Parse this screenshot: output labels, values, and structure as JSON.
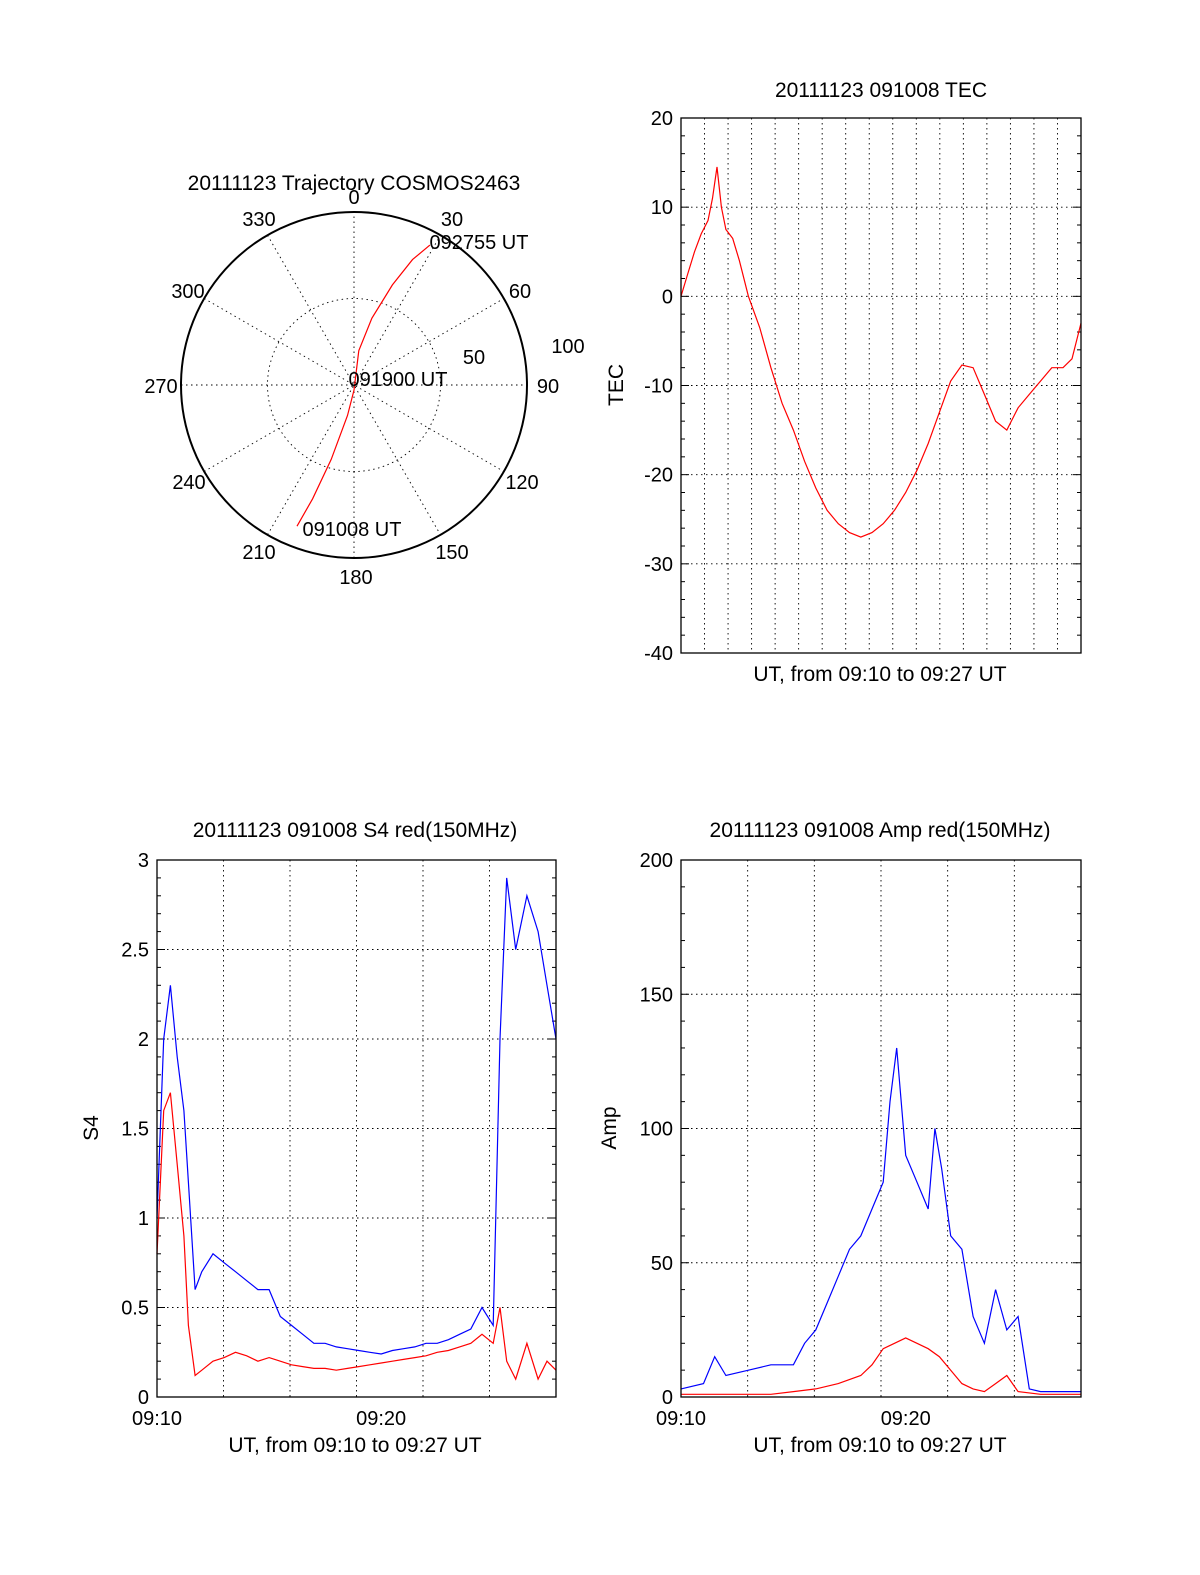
{
  "figure": {
    "charts": [
      {
        "id": "polar",
        "type": "polar",
        "title": "20111123 Trajectory COSMOS2463",
        "angle_labels": [
          {
            "angle": 0,
            "label": "0"
          },
          {
            "angle": 30,
            "label": "30"
          },
          {
            "angle": 60,
            "label": "60"
          },
          {
            "angle": 90,
            "label": "90"
          },
          {
            "angle": 120,
            "label": "120"
          },
          {
            "angle": 150,
            "label": "150"
          },
          {
            "angle": 180,
            "label": "180"
          },
          {
            "angle": 210,
            "label": "210"
          },
          {
            "angle": 240,
            "label": "240"
          },
          {
            "angle": 270,
            "label": "270"
          },
          {
            "angle": 300,
            "label": "300"
          },
          {
            "angle": 330,
            "label": "330"
          }
        ],
        "radial_labels": [
          "50",
          "100"
        ],
        "annotations": [
          {
            "text": "092755 UT"
          },
          {
            "text": "091900 UT"
          },
          {
            "text": "091008 UT"
          }
        ],
        "trajectory": [
          [
            28.5,
            92
          ],
          [
            25,
            80
          ],
          [
            21,
            62
          ],
          [
            15,
            40
          ],
          [
            8,
            20
          ],
          [
            180,
            3
          ],
          [
            192,
            18
          ],
          [
            197,
            45
          ],
          [
            200,
            70
          ],
          [
            202,
            88
          ]
        ],
        "color": "#ff0000"
      },
      {
        "id": "tec",
        "type": "line",
        "title": "20111123 091008 TEC",
        "xlabel": "UT, from 09:10 to 09:27 UT",
        "ylabel": "TEC",
        "ylim": [
          -40,
          20
        ],
        "yticks": [
          "20",
          "10",
          "0",
          "-10",
          "-20",
          "-30",
          "-40"
        ],
        "xlim": [
          0,
          17.8
        ],
        "series": [
          {
            "color": "#ff0000",
            "x": [
              0,
              0.3,
              0.6,
              0.9,
              1.2,
              1.4,
              1.6,
              1.8,
              2.0,
              2.3,
              2.6,
              3.0,
              3.5,
              4.0,
              4.5,
              5.0,
              5.5,
              6.0,
              6.5,
              7.0,
              7.5,
              8.0,
              8.5,
              9.0,
              9.5,
              10.0,
              10.5,
              11.0,
              11.5,
              12.0,
              12.5,
              13.0,
              13.5,
              14.0,
              14.5,
              15.0,
              15.5,
              16.0,
              16.5,
              17.0,
              17.4,
              17.8
            ],
            "y": [
              0,
              2.5,
              5,
              7,
              8.5,
              11,
              14.5,
              10,
              7.5,
              6.5,
              4,
              0,
              -3.5,
              -8,
              -12,
              -15,
              -18.5,
              -21.5,
              -24,
              -25.5,
              -26.5,
              -27,
              -26.5,
              -25.5,
              -24,
              -22,
              -19.5,
              -16.5,
              -13,
              -9.5,
              -7.7,
              -8,
              -11,
              -14,
              -15,
              -12.5,
              -11,
              -9.5,
              -8,
              -8,
              -7,
              -3
            ]
          }
        ]
      },
      {
        "id": "s4",
        "type": "line",
        "title": "20111123 091008 S4 red(150MHz)",
        "xlabel": "UT, from 09:10 to 09:27 UT",
        "ylabel": "S4",
        "ylim": [
          0,
          3
        ],
        "yticks": [
          "3",
          "2.5",
          "2",
          "1.5",
          "1",
          "0.5",
          "0"
        ],
        "xlim": [
          0,
          17.8
        ],
        "xticks": [
          {
            "x": 0,
            "label": "09:10"
          },
          {
            "x": 10,
            "label": "09:20"
          }
        ],
        "series": [
          {
            "color": "#0000ff",
            "x": [
              0,
              0.3,
              0.6,
              0.9,
              1.2,
              1.4,
              1.7,
              2.0,
              2.5,
              3.0,
              3.5,
              4.0,
              4.5,
              5.0,
              5.5,
              6.0,
              6.5,
              7.0,
              7.5,
              8.0,
              8.5,
              9.0,
              9.5,
              10.0,
              10.5,
              11.0,
              11.5,
              12.0,
              12.5,
              13.0,
              13.5,
              14.0,
              14.5,
              15.0,
              15.3,
              15.6,
              16.0,
              16.5,
              17.0,
              17.4,
              17.8
            ],
            "y": [
              1.0,
              2.0,
              2.3,
              1.9,
              1.6,
              1.2,
              0.6,
              0.7,
              0.8,
              0.75,
              0.7,
              0.65,
              0.6,
              0.6,
              0.45,
              0.4,
              0.35,
              0.3,
              0.3,
              0.28,
              0.27,
              0.26,
              0.25,
              0.24,
              0.26,
              0.27,
              0.28,
              0.3,
              0.3,
              0.32,
              0.35,
              0.38,
              0.5,
              0.4,
              2.0,
              2.9,
              2.5,
              2.8,
              2.6,
              2.3,
              2.0
            ]
          },
          {
            "color": "#ff0000",
            "x": [
              0,
              0.3,
              0.6,
              0.9,
              1.2,
              1.4,
              1.7,
              2.0,
              2.5,
              3.0,
              3.5,
              4.0,
              4.5,
              5.0,
              5.5,
              6.0,
              6.5,
              7.0,
              7.5,
              8.0,
              8.5,
              9.0,
              9.5,
              10.0,
              10.5,
              11.0,
              11.5,
              12.0,
              12.5,
              13.0,
              13.5,
              14.0,
              14.5,
              15.0,
              15.3,
              15.6,
              16.0,
              16.5,
              17.0,
              17.4,
              17.8
            ],
            "y": [
              0.8,
              1.6,
              1.7,
              1.3,
              0.9,
              0.4,
              0.12,
              0.15,
              0.2,
              0.22,
              0.25,
              0.23,
              0.2,
              0.22,
              0.2,
              0.18,
              0.17,
              0.16,
              0.16,
              0.15,
              0.16,
              0.17,
              0.18,
              0.19,
              0.2,
              0.21,
              0.22,
              0.23,
              0.25,
              0.26,
              0.28,
              0.3,
              0.35,
              0.3,
              0.5,
              0.2,
              0.1,
              0.3,
              0.1,
              0.2,
              0.15
            ]
          }
        ]
      },
      {
        "id": "amp",
        "type": "line",
        "title": "20111123 091008 Amp red(150MHz)",
        "xlabel": "UT, from 09:10 to 09:27 UT",
        "ylabel": "Amp",
        "ylim": [
          0,
          200
        ],
        "yticks": [
          "200",
          "150",
          "100",
          "50",
          "0"
        ],
        "xlim": [
          0,
          17.8
        ],
        "xticks": [
          {
            "x": 0,
            "label": "09:10"
          },
          {
            "x": 10,
            "label": "09:20"
          }
        ],
        "series": [
          {
            "color": "#0000ff",
            "x": [
              0,
              1,
              1.5,
              2,
              3,
              4,
              5,
              5.5,
              6,
              6.5,
              7,
              7.5,
              8,
              8.5,
              9,
              9.3,
              9.6,
              10,
              10.5,
              11,
              11.3,
              11.6,
              12,
              12.5,
              13,
              13.5,
              14,
              14.5,
              15,
              15.5,
              16,
              17,
              17.8
            ],
            "y": [
              3,
              5,
              15,
              8,
              10,
              12,
              12,
              20,
              25,
              35,
              45,
              55,
              60,
              70,
              80,
              110,
              130,
              90,
              80,
              70,
              100,
              85,
              60,
              55,
              30,
              20,
              40,
              25,
              30,
              3,
              2,
              2,
              2
            ]
          },
          {
            "color": "#ff0000",
            "x": [
              0,
              2,
              4,
              5,
              6,
              7,
              8,
              8.5,
              9,
              9.5,
              10,
              10.5,
              11,
              11.5,
              12,
              12.5,
              13,
              13.5,
              14,
              14.5,
              15,
              16,
              17.8
            ],
            "y": [
              1,
              1,
              1,
              2,
              3,
              5,
              8,
              12,
              18,
              20,
              22,
              20,
              18,
              15,
              10,
              5,
              3,
              2,
              5,
              8,
              2,
              1,
              1
            ]
          }
        ]
      }
    ]
  }
}
